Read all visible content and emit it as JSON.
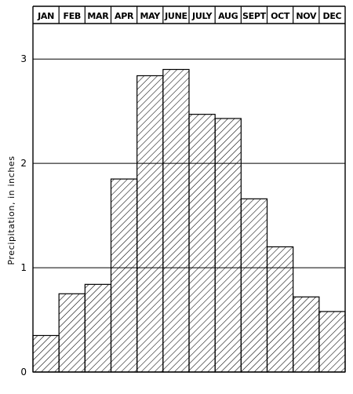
{
  "chart_data": {
    "type": "bar",
    "categories": [
      "JAN",
      "FEB",
      "MAR",
      "APR",
      "MAY",
      "JUNE",
      "JULY",
      "AUG",
      "SEPT",
      "OCT",
      "NOV",
      "DEC"
    ],
    "values": [
      0.35,
      0.75,
      0.84,
      1.85,
      2.84,
      2.9,
      2.47,
      2.43,
      1.66,
      1.2,
      0.72,
      0.58
    ],
    "ylabel": "Precipitation, in inches",
    "ylim": [
      0,
      3.34
    ],
    "yticks": [
      0,
      1,
      2,
      3
    ],
    "ytick_labels": [
      "0",
      "1",
      "2",
      "3"
    ],
    "grid": "horizontal",
    "bar_fill": "diagonal-hatch",
    "colors": {
      "ink": "#000000",
      "background": "#ffffff"
    }
  }
}
